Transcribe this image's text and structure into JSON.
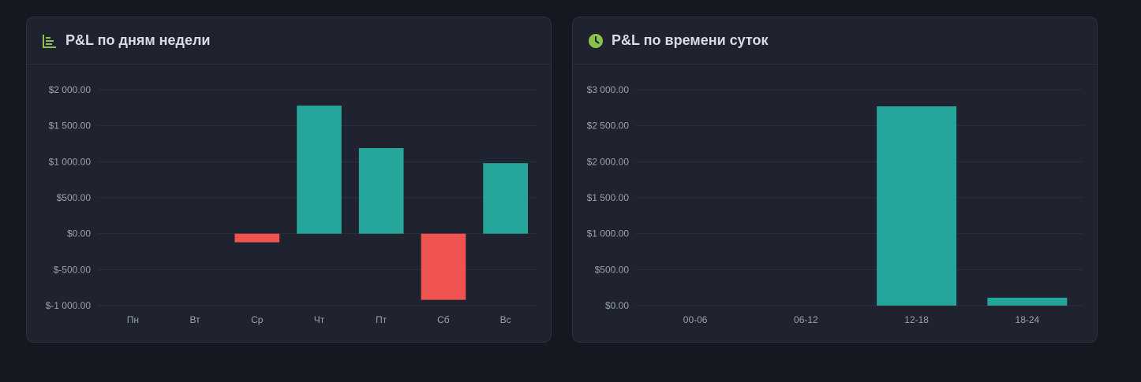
{
  "colors": {
    "positive": "#26a69a",
    "negative": "#ef5350",
    "accent": "#8bc34a"
  },
  "cards": [
    {
      "title": "P&L по дням недели",
      "icon": "bar-chart-icon",
      "chart_data": {
        "type": "bar",
        "categories": [
          "Пн",
          "Вт",
          "Ср",
          "Чт",
          "Пт",
          "Сб",
          "Вс"
        ],
        "values": [
          0,
          0,
          -120,
          1780,
          1190,
          -920,
          980
        ],
        "y_ticks": [
          2000,
          1500,
          1000,
          500,
          0,
          -500,
          -1000
        ],
        "y_tick_labels": [
          "$2 000.00",
          "$1 500.00",
          "$1 000.00",
          "$500.00",
          "$0.00",
          "$-500.00",
          "$-1 000.00"
        ],
        "ylim": [
          -1000,
          2000
        ],
        "grid": true
      }
    },
    {
      "title": "P&L по времени суток",
      "icon": "clock-icon",
      "chart_data": {
        "type": "bar",
        "categories": [
          "00-06",
          "06-12",
          "12-18",
          "18-24"
        ],
        "values": [
          0,
          0,
          2770,
          110
        ],
        "y_ticks": [
          3000,
          2500,
          2000,
          1500,
          1000,
          500,
          0
        ],
        "y_tick_labels": [
          "$3 000.00",
          "$2 500.00",
          "$2 000.00",
          "$1 500.00",
          "$1 000.00",
          "$500.00",
          "$0.00"
        ],
        "ylim": [
          0,
          3000
        ],
        "grid": true
      }
    }
  ]
}
